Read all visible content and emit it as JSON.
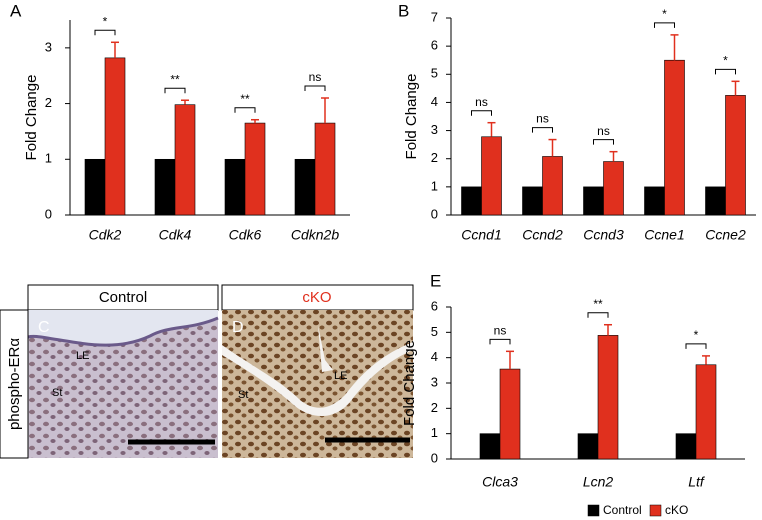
{
  "chart_data": [
    {
      "type": "bar",
      "label": "A",
      "ylabel": "Fold Change",
      "categories": [
        "Cdk2",
        "Cdk4",
        "Cdk6",
        "Cdkn2b"
      ],
      "series": [
        {
          "name": "Control",
          "color": "#000000",
          "values": [
            1,
            1,
            1,
            1
          ]
        },
        {
          "name": "cKO",
          "color": "#e0301e",
          "values": [
            2.82,
            1.98,
            1.65,
            1.65
          ],
          "errors": [
            0.28,
            0.08,
            0.06,
            0.45
          ]
        }
      ],
      "annotations": [
        "*",
        "**",
        "**",
        "ns"
      ],
      "ylim": [
        0,
        3.5
      ],
      "yticks": [
        0,
        1,
        2,
        3
      ]
    },
    {
      "type": "bar",
      "label": "B",
      "ylabel": "Fold Change",
      "categories": [
        "Ccnd1",
        "Ccnd2",
        "Ccnd3",
        "Ccne1",
        "Ccne2"
      ],
      "series": [
        {
          "name": "Control",
          "color": "#000000",
          "values": [
            1,
            1,
            1,
            1,
            1
          ]
        },
        {
          "name": "cKO",
          "color": "#e0301e",
          "values": [
            2.78,
            2.08,
            1.9,
            5.5,
            4.25
          ],
          "errors": [
            0.5,
            0.6,
            0.35,
            0.9,
            0.5
          ]
        }
      ],
      "annotations": [
        "ns",
        "ns",
        "ns",
        "*",
        "*"
      ],
      "ylim": [
        0,
        7
      ],
      "yticks": [
        0,
        1,
        2,
        3,
        4,
        5,
        6,
        7
      ]
    },
    {
      "type": "bar",
      "label": "E",
      "ylabel": "Fold Change",
      "categories": [
        "Clca3",
        "Lcn2",
        "Ltf"
      ],
      "series": [
        {
          "name": "Control",
          "color": "#000000",
          "values": [
            1,
            1,
            1
          ]
        },
        {
          "name": "cKO",
          "color": "#e0301e",
          "values": [
            3.55,
            4.88,
            3.72
          ],
          "errors": [
            0.7,
            0.42,
            0.35
          ]
        }
      ],
      "annotations": [
        "ns",
        "**",
        "*"
      ],
      "ylim": [
        0,
        6
      ],
      "yticks": [
        0,
        1,
        2,
        3,
        4,
        5,
        6
      ]
    }
  ],
  "micrographs": {
    "row_label": "phospho-ERα",
    "panels": [
      {
        "letter": "C",
        "title": "Control",
        "labels": [
          "LE",
          "St"
        ]
      },
      {
        "letter": "D",
        "title": "cKO",
        "labels": [
          "LE",
          "St"
        ]
      }
    ]
  }
}
